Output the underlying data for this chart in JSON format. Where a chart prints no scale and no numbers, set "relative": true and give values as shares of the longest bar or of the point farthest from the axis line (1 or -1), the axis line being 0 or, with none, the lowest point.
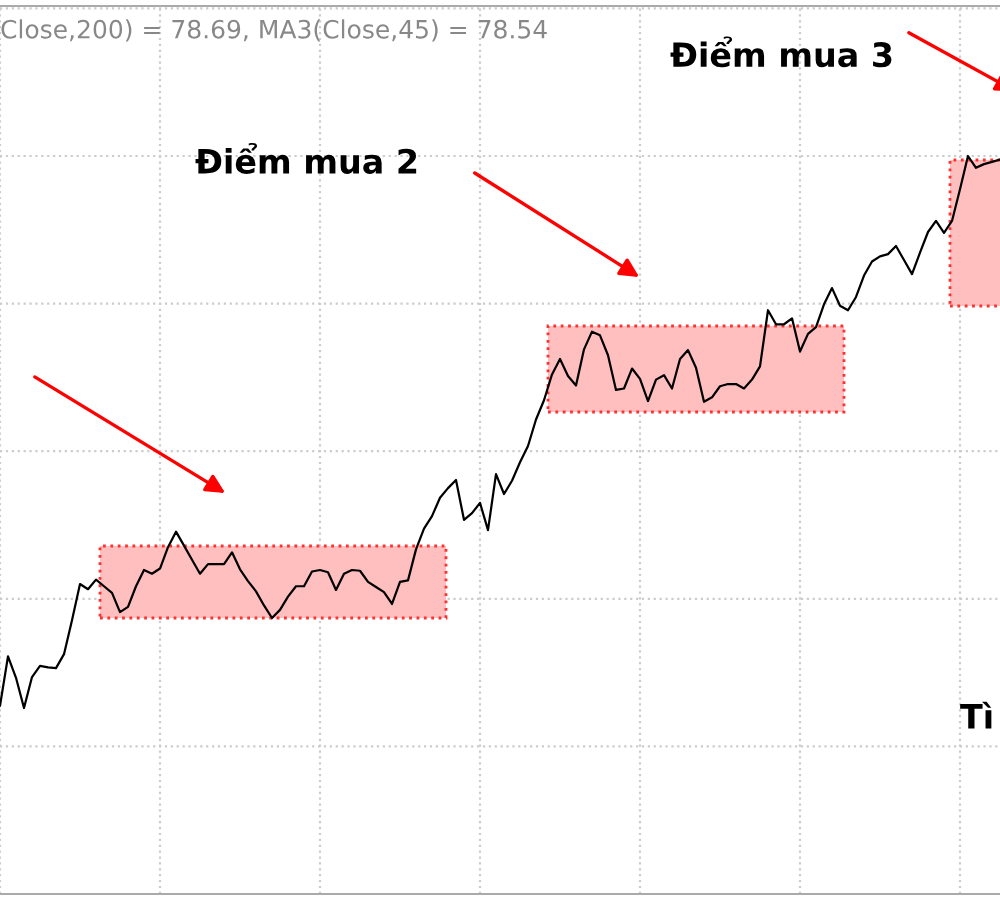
{
  "chart_data": {
    "type": "line",
    "relative": true,
    "grid": true,
    "tick_labels": false,
    "categories": [
      null,
      null,
      null,
      null,
      null,
      null,
      null,
      null,
      null,
      null,
      null,
      null,
      null,
      null,
      null,
      null,
      null,
      null,
      null,
      null,
      null,
      null,
      null,
      null,
      null,
      null,
      null,
      null,
      null,
      null,
      null,
      null,
      null,
      null,
      null,
      null,
      null,
      null,
      null,
      null,
      null,
      null,
      null,
      null,
      null,
      null,
      null,
      null,
      null,
      null,
      null,
      null,
      null,
      null,
      null,
      null,
      null,
      null,
      null,
      null,
      null,
      null,
      null,
      null,
      null,
      null,
      null,
      null,
      null,
      null,
      null,
      null,
      null,
      null,
      null,
      null,
      null,
      null,
      null,
      null,
      null,
      null,
      null,
      null,
      null,
      null,
      null,
      null,
      null,
      null,
      null,
      null,
      null,
      null,
      null,
      null,
      null,
      null,
      null,
      null,
      null,
      null,
      null,
      null,
      null,
      null,
      null,
      null,
      null,
      null,
      null,
      null,
      null,
      null,
      null,
      null,
      null,
      null,
      null,
      null,
      null,
      null,
      null,
      null,
      null,
      null
    ],
    "series": [
      {
        "color": "#000000",
        "values": [
          0.255,
          0.322,
          0.293,
          0.252,
          0.294,
          0.309,
          0.307,
          0.306,
          0.325,
          0.371,
          0.42,
          0.413,
          0.426,
          0.417,
          0.408,
          0.382,
          0.389,
          0.417,
          0.439,
          0.434,
          0.441,
          0.47,
          0.491,
          0.472,
          0.453,
          0.434,
          0.447,
          0.447,
          0.447,
          0.463,
          0.44,
          0.424,
          0.41,
          0.391,
          0.374,
          0.385,
          0.403,
          0.417,
          0.417,
          0.437,
          0.439,
          0.436,
          0.412,
          0.434,
          0.439,
          0.438,
          0.423,
          0.416,
          0.409,
          0.393,
          0.423,
          0.425,
          0.467,
          0.495,
          0.512,
          0.537,
          0.55,
          0.561,
          0.507,
          0.516,
          0.53,
          0.493,
          0.569,
          0.542,
          0.56,
          0.585,
          0.607,
          0.643,
          0.669,
          0.704,
          0.725,
          0.702,
          0.689,
          0.738,
          0.762,
          0.757,
          0.73,
          0.683,
          0.685,
          0.712,
          0.698,
          0.668,
          0.697,
          0.703,
          0.685,
          0.725,
          0.737,
          0.713,
          0.667,
          0.673,
          0.688,
          0.691,
          0.691,
          0.685,
          0.697,
          0.715,
          0.791,
          0.772,
          0.772,
          0.78,
          0.735,
          0.759,
          0.768,
          0.799,
          0.821,
          0.797,
          0.791,
          0.809,
          0.838,
          0.857,
          0.864,
          0.867,
          0.878,
          0.859,
          0.84,
          0.869,
          0.897,
          0.912,
          0.896,
          0.912,
          0.955,
          1.0,
          0.984,
          0.989,
          0.992,
          0.995
        ]
      }
    ],
    "annotations": [
      "Close,200) = 78.69, MA3(Close,45) = 78.54",
      "Điểm mua 2",
      "Điểm mua 3",
      "Tì"
    ]
  }
}
